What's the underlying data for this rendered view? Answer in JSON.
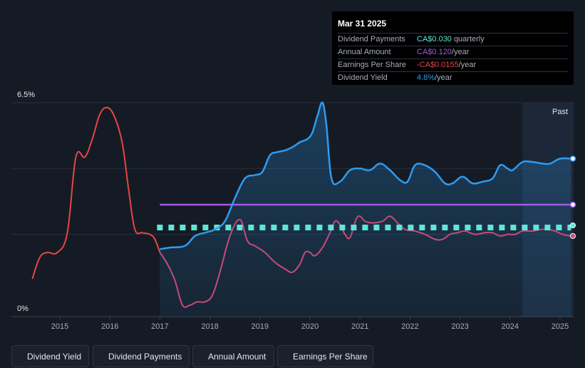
{
  "tooltip": {
    "date": "Mar 31 2025",
    "rows": [
      {
        "label": "Dividend Payments",
        "value": "CA$0.030",
        "unit": "quarterly",
        "color": "#5ee6d9"
      },
      {
        "label": "Annual Amount",
        "value": "CA$0.120",
        "unit": "/year",
        "color": "#a259e6"
      },
      {
        "label": "Earnings Per Share",
        "value": "-CA$0.0155",
        "unit": "/year",
        "color": "#e84545"
      },
      {
        "label": "Dividend Yield",
        "value": "4.8%",
        "unit": "/year",
        "color": "#2e9bf0"
      }
    ]
  },
  "legend": [
    {
      "label": "Dividend Yield",
      "color": "#2e9bf0"
    },
    {
      "label": "Dividend Payments",
      "color": "#5ee6d9"
    },
    {
      "label": "Annual Amount",
      "color": "#a259e6"
    },
    {
      "label": "Earnings Per Share",
      "color": "#c64a78"
    }
  ],
  "chart_data": {
    "type": "line",
    "title": "",
    "ylim": [
      0,
      6.5
    ],
    "y_tick_labels": [
      "6.5%",
      "0%"
    ],
    "x_tick_labels": [
      "2015",
      "2016",
      "2017",
      "2018",
      "2019",
      "2020",
      "2021",
      "2022",
      "2023",
      "2024",
      "2025"
    ],
    "past_label": "Past",
    "series": [
      {
        "name": "Dividend Yield",
        "unit": "%",
        "color": "#2e9bf0",
        "points": [
          [
            2017.0,
            2.05
          ],
          [
            2017.2,
            2.1
          ],
          [
            2017.5,
            2.15
          ],
          [
            2017.7,
            2.45
          ],
          [
            2017.9,
            2.55
          ],
          [
            2018.1,
            2.65
          ],
          [
            2018.3,
            2.9
          ],
          [
            2018.5,
            3.6
          ],
          [
            2018.7,
            4.2
          ],
          [
            2018.9,
            4.3
          ],
          [
            2019.05,
            4.4
          ],
          [
            2019.2,
            4.9
          ],
          [
            2019.35,
            5.0
          ],
          [
            2019.5,
            5.05
          ],
          [
            2019.65,
            5.15
          ],
          [
            2019.8,
            5.3
          ],
          [
            2019.95,
            5.4
          ],
          [
            2020.05,
            5.6
          ],
          [
            2020.15,
            6.1
          ],
          [
            2020.25,
            6.5
          ],
          [
            2020.33,
            5.8
          ],
          [
            2020.43,
            4.2
          ],
          [
            2020.6,
            4.1
          ],
          [
            2020.8,
            4.45
          ],
          [
            2021.0,
            4.5
          ],
          [
            2021.2,
            4.45
          ],
          [
            2021.4,
            4.65
          ],
          [
            2021.6,
            4.45
          ],
          [
            2021.8,
            4.15
          ],
          [
            2021.95,
            4.1
          ],
          [
            2022.1,
            4.6
          ],
          [
            2022.3,
            4.6
          ],
          [
            2022.5,
            4.4
          ],
          [
            2022.7,
            4.05
          ],
          [
            2022.85,
            4.05
          ],
          [
            2023.05,
            4.25
          ],
          [
            2023.25,
            4.05
          ],
          [
            2023.45,
            4.1
          ],
          [
            2023.65,
            4.2
          ],
          [
            2023.8,
            4.6
          ],
          [
            2023.95,
            4.5
          ],
          [
            2024.05,
            4.45
          ],
          [
            2024.25,
            4.7
          ],
          [
            2024.45,
            4.7
          ],
          [
            2024.65,
            4.65
          ],
          [
            2024.8,
            4.65
          ],
          [
            2025.0,
            4.8
          ],
          [
            2025.22,
            4.8
          ]
        ]
      },
      {
        "name": "Dividend Payments",
        "unit": "CA$ quarterly",
        "color": "#5ee6d9",
        "points": [
          [
            2017.0,
            0.03
          ],
          [
            2025.22,
            0.03
          ]
        ]
      },
      {
        "name": "Annual Amount",
        "unit": "CA$/year",
        "color": "#a259e6",
        "points": [
          [
            2017.0,
            0.12
          ],
          [
            2025.22,
            0.12
          ]
        ]
      },
      {
        "name": "Earnings Per Share",
        "unit": "CA$/year",
        "color": "#c64a78",
        "negative_color": "#e84545",
        "points": [
          [
            2014.45,
            1.15
          ],
          [
            2014.6,
            1.8
          ],
          [
            2014.75,
            1.95
          ],
          [
            2014.95,
            1.95
          ],
          [
            2015.15,
            2.55
          ],
          [
            2015.32,
            4.85
          ],
          [
            2015.5,
            4.85
          ],
          [
            2015.65,
            5.4
          ],
          [
            2015.8,
            6.15
          ],
          [
            2015.95,
            6.35
          ],
          [
            2016.1,
            6.05
          ],
          [
            2016.25,
            5.25
          ],
          [
            2016.38,
            3.8
          ],
          [
            2016.5,
            2.65
          ],
          [
            2016.65,
            2.55
          ],
          [
            2016.8,
            2.5
          ],
          [
            2016.9,
            2.35
          ],
          [
            2017.0,
            1.95
          ],
          [
            2017.15,
            1.6
          ],
          [
            2017.3,
            1.1
          ],
          [
            2017.45,
            0.35
          ],
          [
            2017.6,
            0.35
          ],
          [
            2017.75,
            0.45
          ],
          [
            2017.9,
            0.45
          ],
          [
            2018.05,
            0.65
          ],
          [
            2018.2,
            1.35
          ],
          [
            2018.4,
            2.45
          ],
          [
            2018.6,
            2.95
          ],
          [
            2018.75,
            2.3
          ],
          [
            2018.9,
            2.15
          ],
          [
            2019.1,
            1.95
          ],
          [
            2019.3,
            1.65
          ],
          [
            2019.5,
            1.45
          ],
          [
            2019.65,
            1.35
          ],
          [
            2019.8,
            1.6
          ],
          [
            2019.9,
            1.95
          ],
          [
            2020.0,
            1.95
          ],
          [
            2020.1,
            1.85
          ],
          [
            2020.25,
            2.1
          ],
          [
            2020.4,
            2.55
          ],
          [
            2020.5,
            2.9
          ],
          [
            2020.6,
            2.8
          ],
          [
            2020.7,
            2.5
          ],
          [
            2020.8,
            2.4
          ],
          [
            2020.92,
            2.95
          ],
          [
            2021.0,
            3.05
          ],
          [
            2021.1,
            2.9
          ],
          [
            2021.25,
            2.85
          ],
          [
            2021.45,
            2.9
          ],
          [
            2021.6,
            3.05
          ],
          [
            2021.75,
            2.85
          ],
          [
            2021.9,
            2.65
          ],
          [
            2022.1,
            2.6
          ],
          [
            2022.3,
            2.5
          ],
          [
            2022.5,
            2.35
          ],
          [
            2022.65,
            2.35
          ],
          [
            2022.8,
            2.5
          ],
          [
            2022.95,
            2.55
          ],
          [
            2023.1,
            2.6
          ],
          [
            2023.3,
            2.5
          ],
          [
            2023.5,
            2.55
          ],
          [
            2023.65,
            2.55
          ],
          [
            2023.8,
            2.45
          ],
          [
            2023.95,
            2.5
          ],
          [
            2024.1,
            2.5
          ],
          [
            2024.25,
            2.6
          ],
          [
            2024.45,
            2.6
          ],
          [
            2024.6,
            2.65
          ],
          [
            2024.75,
            2.65
          ],
          [
            2024.9,
            2.6
          ],
          [
            2025.05,
            2.5
          ],
          [
            2025.22,
            2.45
          ]
        ]
      }
    ]
  }
}
